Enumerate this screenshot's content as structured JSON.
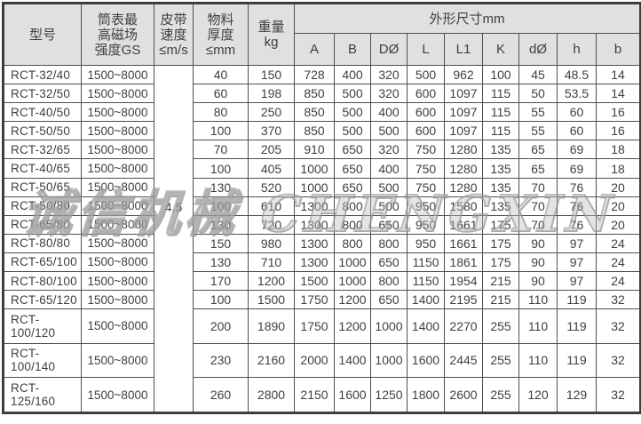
{
  "watermark": {
    "text": "诚信机械 CHENGXIN"
  },
  "colors": {
    "header_bg": "#e0e0e0",
    "border": "#4f4f4f",
    "outer_border": "#3d3d3d",
    "text": "#3f3f3f",
    "watermark_gray": "#949494"
  },
  "table": {
    "headers": {
      "model": "型号",
      "max_field": "筒表最\n高磁场\n强度GS",
      "belt_speed": "皮带\n速度\n≤m/s",
      "material_thickness": "物料\n厚度\n≤mm",
      "weight": "重量\nkg",
      "dimensions_group": "外形尺寸mm"
    },
    "dim_headers": [
      "A",
      "B",
      "DØ",
      "L",
      "L1",
      "K",
      "dØ",
      "h",
      "b"
    ],
    "belt_speed_value": "4.5",
    "rows": [
      {
        "model": "RCT-32/40",
        "gs": "1500~8000",
        "thickness": "40",
        "weight": "150",
        "dims": [
          "728",
          "400",
          "320",
          "500",
          "962",
          "100",
          "45",
          "48.5",
          "14"
        ]
      },
      {
        "model": "RCT-32/50",
        "gs": "1500~8000",
        "thickness": "60",
        "weight": "198",
        "dims": [
          "850",
          "500",
          "320",
          "600",
          "1097",
          "115",
          "50",
          "53.5",
          "14"
        ]
      },
      {
        "model": "RCT-40/50",
        "gs": "1500~8000",
        "thickness": "80",
        "weight": "250",
        "dims": [
          "850",
          "500",
          "400",
          "600",
          "1097",
          "115",
          "55",
          "60",
          "16"
        ]
      },
      {
        "model": "RCT-50/50",
        "gs": "1500~8000",
        "thickness": "100",
        "weight": "370",
        "dims": [
          "850",
          "500",
          "500",
          "600",
          "1097",
          "115",
          "55",
          "60",
          "16"
        ]
      },
      {
        "model": "RCT-32/65",
        "gs": "1500~8000",
        "thickness": "70",
        "weight": "205",
        "dims": [
          "910",
          "650",
          "320",
          "750",
          "1280",
          "135",
          "65",
          "69",
          "18"
        ]
      },
      {
        "model": "RCT-40/65",
        "gs": "1500~8000",
        "thickness": "100",
        "weight": "405",
        "dims": [
          "1000",
          "650",
          "400",
          "750",
          "1280",
          "135",
          "65",
          "69",
          "18"
        ]
      },
      {
        "model": "RCT-50/65",
        "gs": "1500~8000",
        "thickness": "130",
        "weight": "520",
        "dims": [
          "1000",
          "650",
          "500",
          "750",
          "1280",
          "135",
          "70",
          "76",
          "20"
        ]
      },
      {
        "model": "RCT-50/80",
        "gs": "1500~8000",
        "thickness": "100",
        "weight": "610",
        "dims": [
          "1300",
          "800",
          "500",
          "950",
          "1580",
          "135",
          "70",
          "76",
          "20"
        ]
      },
      {
        "model": "RCT-65/80",
        "gs": "1500~8000",
        "thickness": "130",
        "weight": "720",
        "dims": [
          "1300",
          "800",
          "650",
          "950",
          "1661",
          "175",
          "70",
          "76",
          "20"
        ]
      },
      {
        "model": "RCT-80/80",
        "gs": "1500~8000",
        "thickness": "150",
        "weight": "980",
        "dims": [
          "1300",
          "800",
          "800",
          "950",
          "1661",
          "175",
          "90",
          "97",
          "24"
        ]
      },
      {
        "model": "RCT-65/100",
        "gs": "1500~8000",
        "thickness": "130",
        "weight": "710",
        "dims": [
          "1300",
          "1000",
          "650",
          "1150",
          "1861",
          "175",
          "90",
          "97",
          "24"
        ]
      },
      {
        "model": "RCT-80/100",
        "gs": "1500~8000",
        "thickness": "170",
        "weight": "1200",
        "dims": [
          "1500",
          "1000",
          "800",
          "1150",
          "1954",
          "215",
          "90",
          "97",
          "24"
        ]
      },
      {
        "model": "RCT-65/120",
        "gs": "1500~8000",
        "thickness": "100",
        "weight": "1500",
        "dims": [
          "1750",
          "1200",
          "650",
          "1400",
          "2195",
          "215",
          "110",
          "119",
          "32"
        ]
      },
      {
        "model": "RCT-100/120",
        "gs": "1500~8000",
        "thickness": "200",
        "weight": "1890",
        "dims": [
          "1750",
          "1200",
          "1000",
          "1400",
          "2270",
          "255",
          "110",
          "119",
          "32"
        ]
      },
      {
        "model": "RCT-100/140",
        "gs": "1500~8000",
        "thickness": "230",
        "weight": "2160",
        "dims": [
          "2000",
          "1400",
          "1000",
          "1600",
          "2445",
          "255",
          "110",
          "119",
          "32"
        ]
      },
      {
        "model": "RCT-125/160",
        "gs": "1500~8000",
        "thickness": "260",
        "weight": "2800",
        "dims": [
          "2150",
          "1600",
          "1250",
          "1800",
          "2600",
          "255",
          "120",
          "129",
          "32"
        ]
      }
    ]
  }
}
